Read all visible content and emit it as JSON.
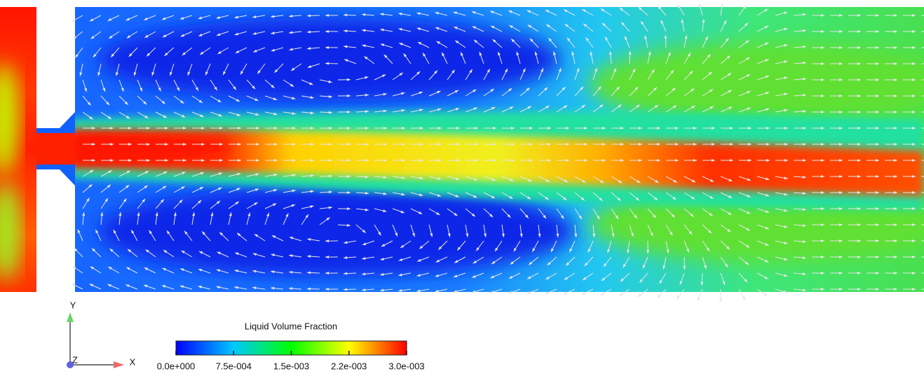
{
  "colorbar": {
    "title": "Liquid Volume Fraction",
    "range": [
      0,
      0.003
    ],
    "ticks": [
      {
        "value": 0,
        "label": "0.0e+000"
      },
      {
        "value": 0.00075,
        "label": "7.5e-004"
      },
      {
        "value": 0.0015,
        "label": "1.5e-003"
      },
      {
        "value": 0.00225,
        "label": "2.2e-003"
      },
      {
        "value": 0.003,
        "label": "3.0e-003"
      }
    ]
  },
  "axes_triad": {
    "y_label": "Y",
    "x_label": "X",
    "z_label": "Z"
  }
}
